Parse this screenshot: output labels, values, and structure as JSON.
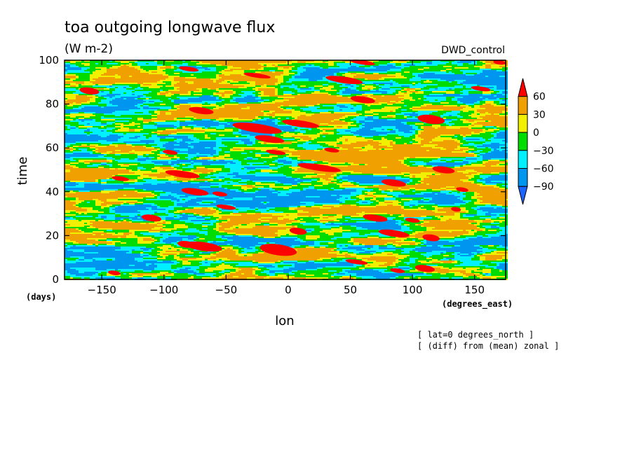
{
  "chart_data": {
    "type": "heatmap",
    "title": "toa outgoing longwave flux",
    "subtitle": "(W m-2)",
    "dataset_label": "DWD_control",
    "xlabel": "lon",
    "x_unit": "(degrees_east)",
    "ylabel": "time",
    "y_unit": "(days)",
    "xlim": [
      -180,
      175
    ],
    "ylim": [
      0,
      100
    ],
    "x_ticks": [
      -150,
      -100,
      -50,
      0,
      50,
      100,
      150
    ],
    "x_tick_labels": [
      "−150",
      "−100",
      "−50",
      "0",
      "50",
      "100",
      "150"
    ],
    "y_ticks": [
      0,
      20,
      40,
      60,
      80,
      100
    ],
    "y_tick_labels": [
      "0",
      "20",
      "40",
      "60",
      "80",
      "100"
    ],
    "colorbar": {
      "levels": [
        -90,
        -60,
        -30,
        0,
        30,
        60
      ],
      "level_labels": [
        "−90",
        "−60",
        "−30",
        "0",
        "30",
        "60"
      ],
      "colors": [
        "#1e64ff",
        "#0096f0",
        "#00f0ff",
        "#00dc00",
        "#f0f000",
        "#f0a000",
        "#ff0000"
      ]
    },
    "annotations": [
      "[ lat=0 degrees_north ]",
      "[ (diff) from (mean) zonal ]"
    ],
    "red_patches": [
      {
        "lon": -68,
        "time": 15,
        "w": 30,
        "h": 4
      },
      {
        "lon": -82,
        "time": 16,
        "w": 14,
        "h": 3
      },
      {
        "lon": -8,
        "time": 13.5,
        "w": 30,
        "h": 5
      },
      {
        "lon": 110,
        "time": 5,
        "w": 16,
        "h": 3
      },
      {
        "lon": 88,
        "time": 4,
        "w": 12,
        "h": 2
      },
      {
        "lon": 55,
        "time": 8,
        "w": 18,
        "h": 2
      },
      {
        "lon": -140,
        "time": 3,
        "w": 10,
        "h": 2
      },
      {
        "lon": 85,
        "time": 21,
        "w": 25,
        "h": 3
      },
      {
        "lon": 115,
        "time": 19,
        "w": 14,
        "h": 3
      },
      {
        "lon": 8,
        "time": 22,
        "w": 14,
        "h": 3
      },
      {
        "lon": -110,
        "time": 28,
        "w": 16,
        "h": 3
      },
      {
        "lon": 70,
        "time": 28,
        "w": 20,
        "h": 3
      },
      {
        "lon": 100,
        "time": 27,
        "w": 12,
        "h": 2
      },
      {
        "lon": -50,
        "time": 33,
        "w": 16,
        "h": 2
      },
      {
        "lon": 135,
        "time": 32,
        "w": 8,
        "h": 2
      },
      {
        "lon": -75,
        "time": 40,
        "w": 22,
        "h": 3
      },
      {
        "lon": -55,
        "time": 39,
        "w": 12,
        "h": 2
      },
      {
        "lon": 85,
        "time": 44,
        "w": 20,
        "h": 3
      },
      {
        "lon": 140,
        "time": 41,
        "w": 10,
        "h": 2
      },
      {
        "lon": -85,
        "time": 48,
        "w": 28,
        "h": 3
      },
      {
        "lon": -135,
        "time": 46,
        "w": 14,
        "h": 2
      },
      {
        "lon": 25,
        "time": 51,
        "w": 35,
        "h": 3
      },
      {
        "lon": 125,
        "time": 50,
        "w": 18,
        "h": 3
      },
      {
        "lon": -10,
        "time": 58,
        "w": 16,
        "h": 2
      },
      {
        "lon": 35,
        "time": 59,
        "w": 12,
        "h": 2
      },
      {
        "lon": -95,
        "time": 58,
        "w": 12,
        "h": 2
      },
      {
        "lon": -25,
        "time": 69,
        "w": 40,
        "h": 4
      },
      {
        "lon": -15,
        "time": 64,
        "w": 24,
        "h": 3
      },
      {
        "lon": 10,
        "time": 71,
        "w": 30,
        "h": 3
      },
      {
        "lon": 115,
        "time": 73,
        "w": 22,
        "h": 4
      },
      {
        "lon": -70,
        "time": 77,
        "w": 20,
        "h": 3
      },
      {
        "lon": 60,
        "time": 82,
        "w": 20,
        "h": 3
      },
      {
        "lon": -160,
        "time": 86,
        "w": 16,
        "h": 3
      },
      {
        "lon": 45,
        "time": 91,
        "w": 30,
        "h": 3
      },
      {
        "lon": -25,
        "time": 93,
        "w": 22,
        "h": 2
      },
      {
        "lon": -80,
        "time": 96,
        "w": 16,
        "h": 2
      },
      {
        "lon": 155,
        "time": 87,
        "w": 16,
        "h": 2
      },
      {
        "lon": 60,
        "time": 99,
        "w": 20,
        "h": 2
      },
      {
        "lon": 170,
        "time": 99,
        "w": 10,
        "h": 2
      }
    ]
  }
}
